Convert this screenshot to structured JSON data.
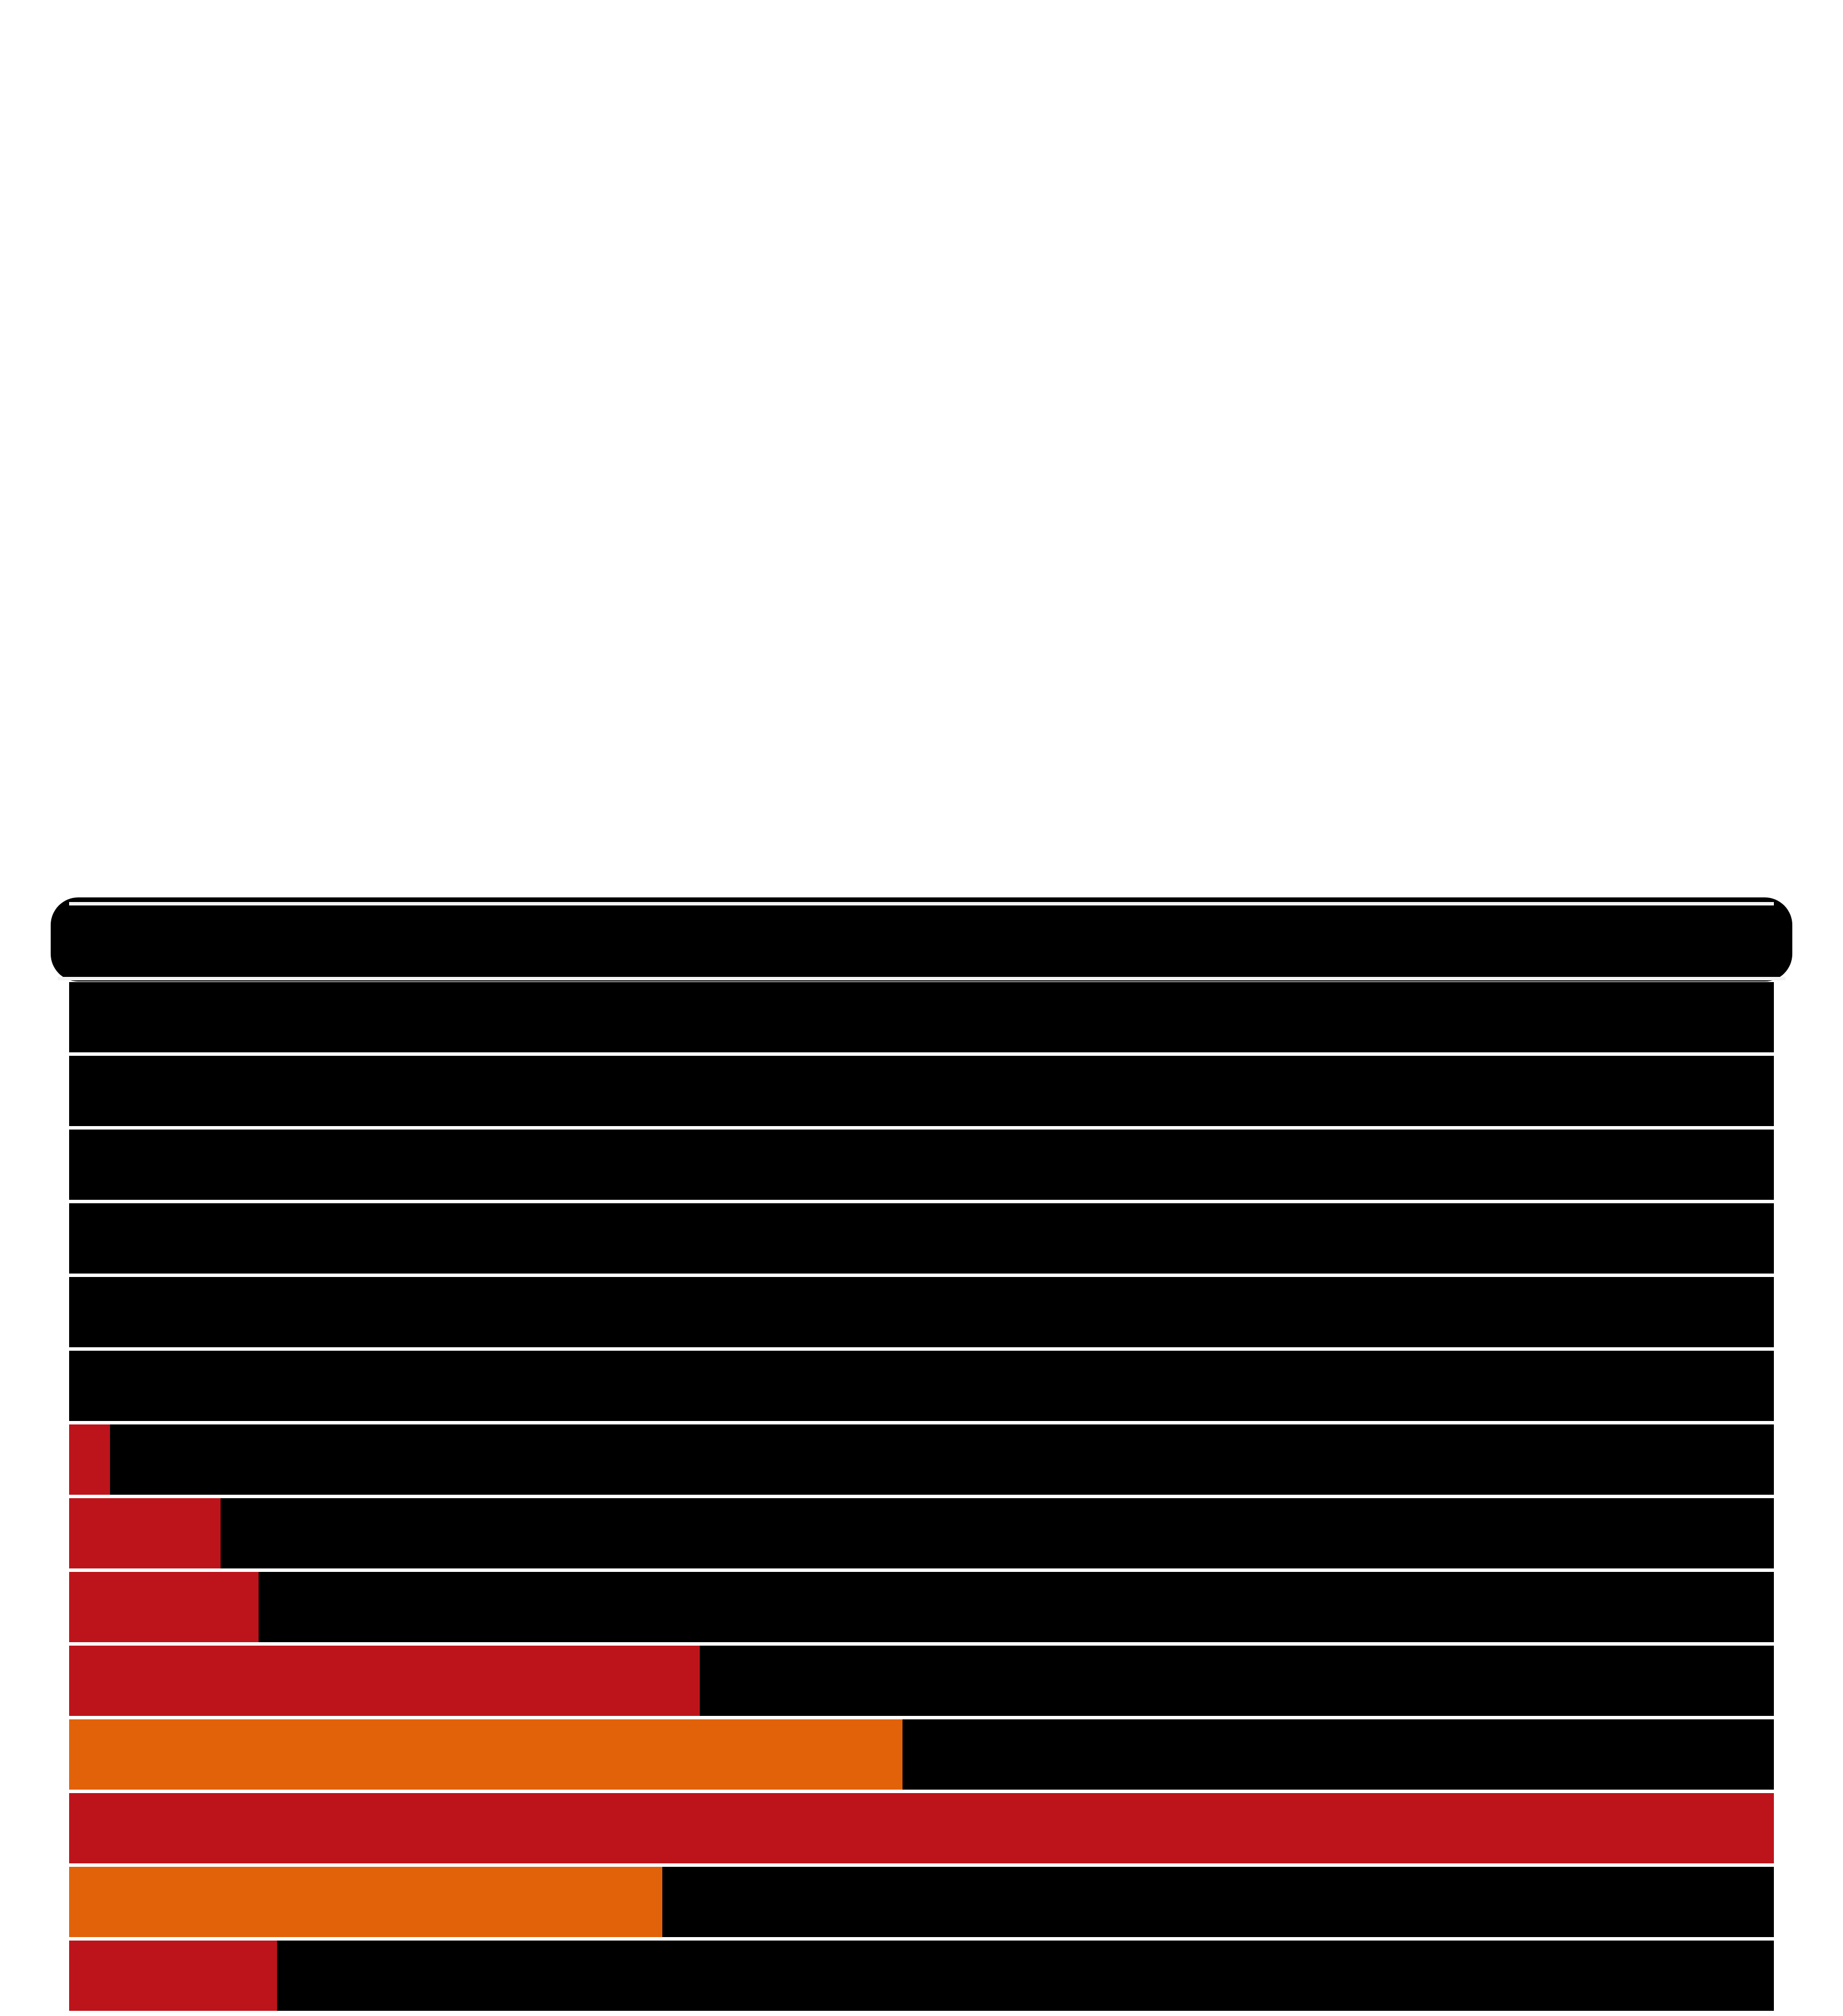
{
  "colors": {
    "background": "#ffffff",
    "track": "#000000",
    "separator": "#f2f2f2",
    "red": "#bd141b",
    "orange": "#e2620a"
  },
  "rows": [
    {
      "level": 0.0,
      "color": "red"
    },
    {
      "level": 0.0,
      "color": "red"
    },
    {
      "level": 0.0,
      "color": "red"
    },
    {
      "level": 0.0,
      "color": "red"
    },
    {
      "level": 0.0,
      "color": "red"
    },
    {
      "level": 0.0,
      "color": "red"
    },
    {
      "level": 0.024,
      "color": "red"
    },
    {
      "level": 0.089,
      "color": "red"
    },
    {
      "level": 0.111,
      "color": "red"
    },
    {
      "level": 0.37,
      "color": "red"
    },
    {
      "level": 0.489,
      "color": "orange"
    },
    {
      "level": 1.0,
      "color": "red"
    },
    {
      "level": 0.348,
      "color": "orange"
    },
    {
      "level": 0.122,
      "color": "red"
    }
  ]
}
